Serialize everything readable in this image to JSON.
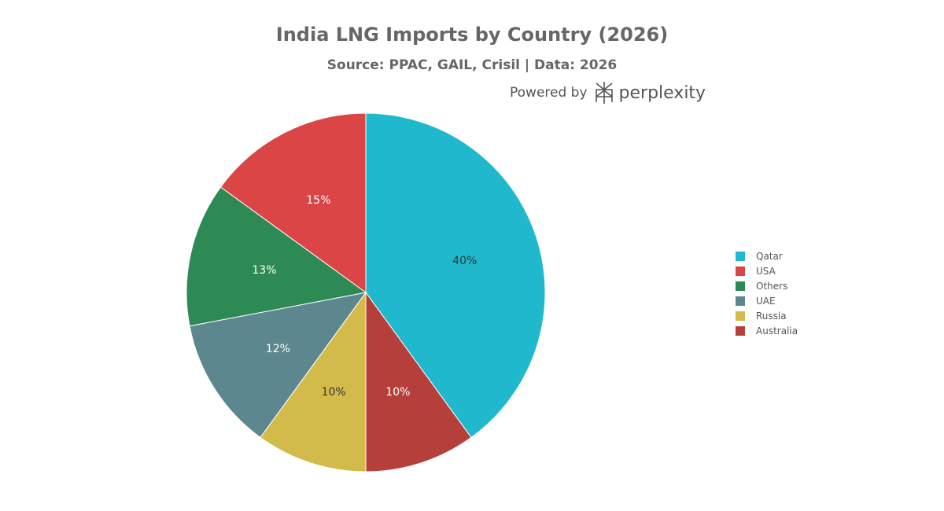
{
  "chart_data": {
    "type": "pie",
    "title": "India LNG Imports by Country (2026)",
    "subtitle": "Source: PPAC, GAIL, Crisil | Data: 2026",
    "slices": [
      {
        "label": "Qatar",
        "value": 40,
        "color": "#20b8cd",
        "text": "40%"
      },
      {
        "label": "Australia",
        "value": 10,
        "color": "#b5403b",
        "text": "10%"
      },
      {
        "label": "Russia",
        "value": 10,
        "color": "#d3bb4b",
        "text": "10%"
      },
      {
        "label": "UAE",
        "value": 12,
        "color": "#5d878e",
        "text": "12%"
      },
      {
        "label": "Others",
        "value": 13,
        "color": "#2d8a55",
        "text": "13%"
      },
      {
        "label": "USA",
        "value": 15,
        "color": "#db4546",
        "text": "15%"
      }
    ],
    "legend_order": [
      "Qatar",
      "USA",
      "Others",
      "UAE",
      "Russia",
      "Australia"
    ],
    "legend_position": "right"
  },
  "branding": {
    "powered_by": "Powered by",
    "brand_name": "perplexity",
    "logo_icon": "perplexity-logo-icon"
  }
}
